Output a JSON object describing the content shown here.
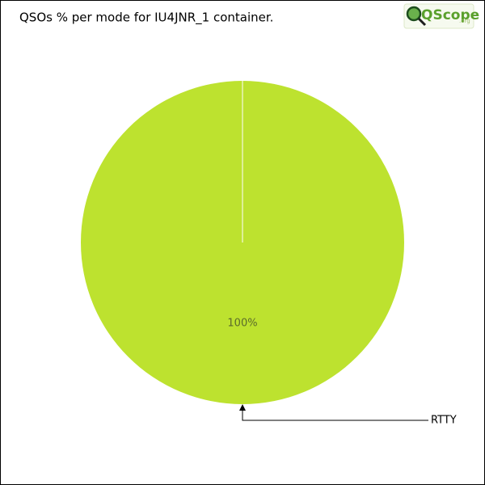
{
  "chart_data": {
    "type": "pie",
    "title": "QSOs % per mode for IU4JNR_1 container.",
    "categories": [
      "RTTY"
    ],
    "values": [
      100
    ],
    "value_labels": [
      "100%"
    ],
    "colors": [
      "#bde22f"
    ]
  },
  "logo": {
    "text": "QScope",
    "suffix": ".org"
  }
}
